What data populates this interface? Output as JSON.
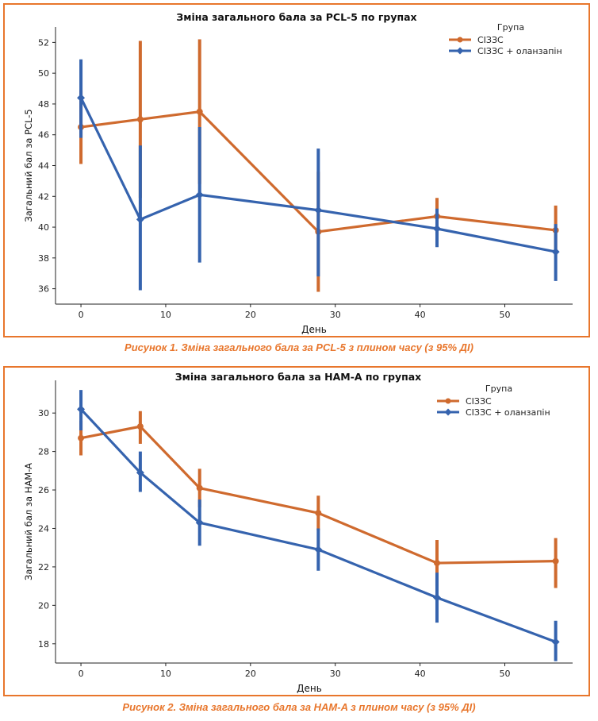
{
  "figures": [
    {
      "caption": "Рисунок 1. Зміна загального бала за PCL-5 з плином часу (з 95% ДІ)"
    },
    {
      "caption": "Рисунок 2. Зміна загального бала за HAM-A з плином часу (з 95% ДІ)"
    }
  ],
  "colors": {
    "border": "#e8762c",
    "series_orange": "#cf6a2e",
    "series_blue": "#3563ae"
  },
  "chart_data": [
    {
      "type": "line",
      "title": "Зміна загального бала за PCL-5 по групах",
      "xlabel": "День",
      "ylabel": "Загальний бал за PCL-5",
      "xlim": [
        -3,
        58
      ],
      "ylim": [
        35,
        53
      ],
      "xticks": [
        0,
        10,
        20,
        30,
        40,
        50
      ],
      "yticks": [
        36,
        38,
        40,
        42,
        44,
        46,
        48,
        50,
        52
      ],
      "grid": false,
      "legend": {
        "title": "Група",
        "placement": "top-right"
      },
      "x": [
        0,
        7,
        14,
        28,
        42,
        56
      ],
      "series": [
        {
          "name": "СІЗЗС",
          "marker": "circle",
          "color": "#cf6a2e",
          "values": [
            46.5,
            47.0,
            47.5,
            39.7,
            40.7,
            39.8
          ],
          "ci_low": [
            44.1,
            41.9,
            42.8,
            35.8,
            39.5,
            38.2
          ],
          "ci_high": [
            48.9,
            52.1,
            52.2,
            43.6,
            41.9,
            41.4
          ]
        },
        {
          "name": "СІЗЗС + оланзапін",
          "marker": "diamond",
          "color": "#3563ae",
          "values": [
            48.4,
            40.5,
            42.1,
            41.1,
            39.9,
            38.4
          ],
          "ci_low": [
            45.8,
            35.9,
            37.7,
            36.8,
            38.7,
            36.5
          ],
          "ci_high": [
            50.9,
            45.3,
            46.5,
            45.1,
            41.2,
            40.2
          ]
        }
      ]
    },
    {
      "type": "line",
      "title": "Зміна загального бала за HAM-A по групах",
      "xlabel": "День",
      "ylabel": "Загальний бал за HAM-A",
      "xlim": [
        -3,
        58
      ],
      "ylim": [
        17,
        31.7
      ],
      "xticks": [
        0,
        10,
        20,
        30,
        40,
        50
      ],
      "yticks": [
        18,
        20,
        22,
        24,
        26,
        28,
        30
      ],
      "grid": false,
      "legend": {
        "title": "Група",
        "placement": "top-right"
      },
      "x": [
        0,
        7,
        14,
        28,
        42,
        56
      ],
      "series": [
        {
          "name": "СІЗЗС",
          "marker": "circle",
          "color": "#cf6a2e",
          "values": [
            28.7,
            29.3,
            26.1,
            24.8,
            22.2,
            22.3
          ],
          "ci_low": [
            27.8,
            28.4,
            25.1,
            23.9,
            21.0,
            20.9
          ],
          "ci_high": [
            29.6,
            30.1,
            27.1,
            25.7,
            23.4,
            23.5
          ]
        },
        {
          "name": "СІЗЗС + оланзапін",
          "marker": "diamond",
          "color": "#3563ae",
          "values": [
            30.2,
            26.9,
            24.3,
            22.9,
            20.4,
            18.1
          ],
          "ci_low": [
            29.1,
            25.9,
            23.1,
            21.8,
            19.1,
            17.1
          ],
          "ci_high": [
            31.2,
            28.0,
            25.5,
            24.0,
            21.7,
            19.2
          ]
        }
      ]
    }
  ]
}
